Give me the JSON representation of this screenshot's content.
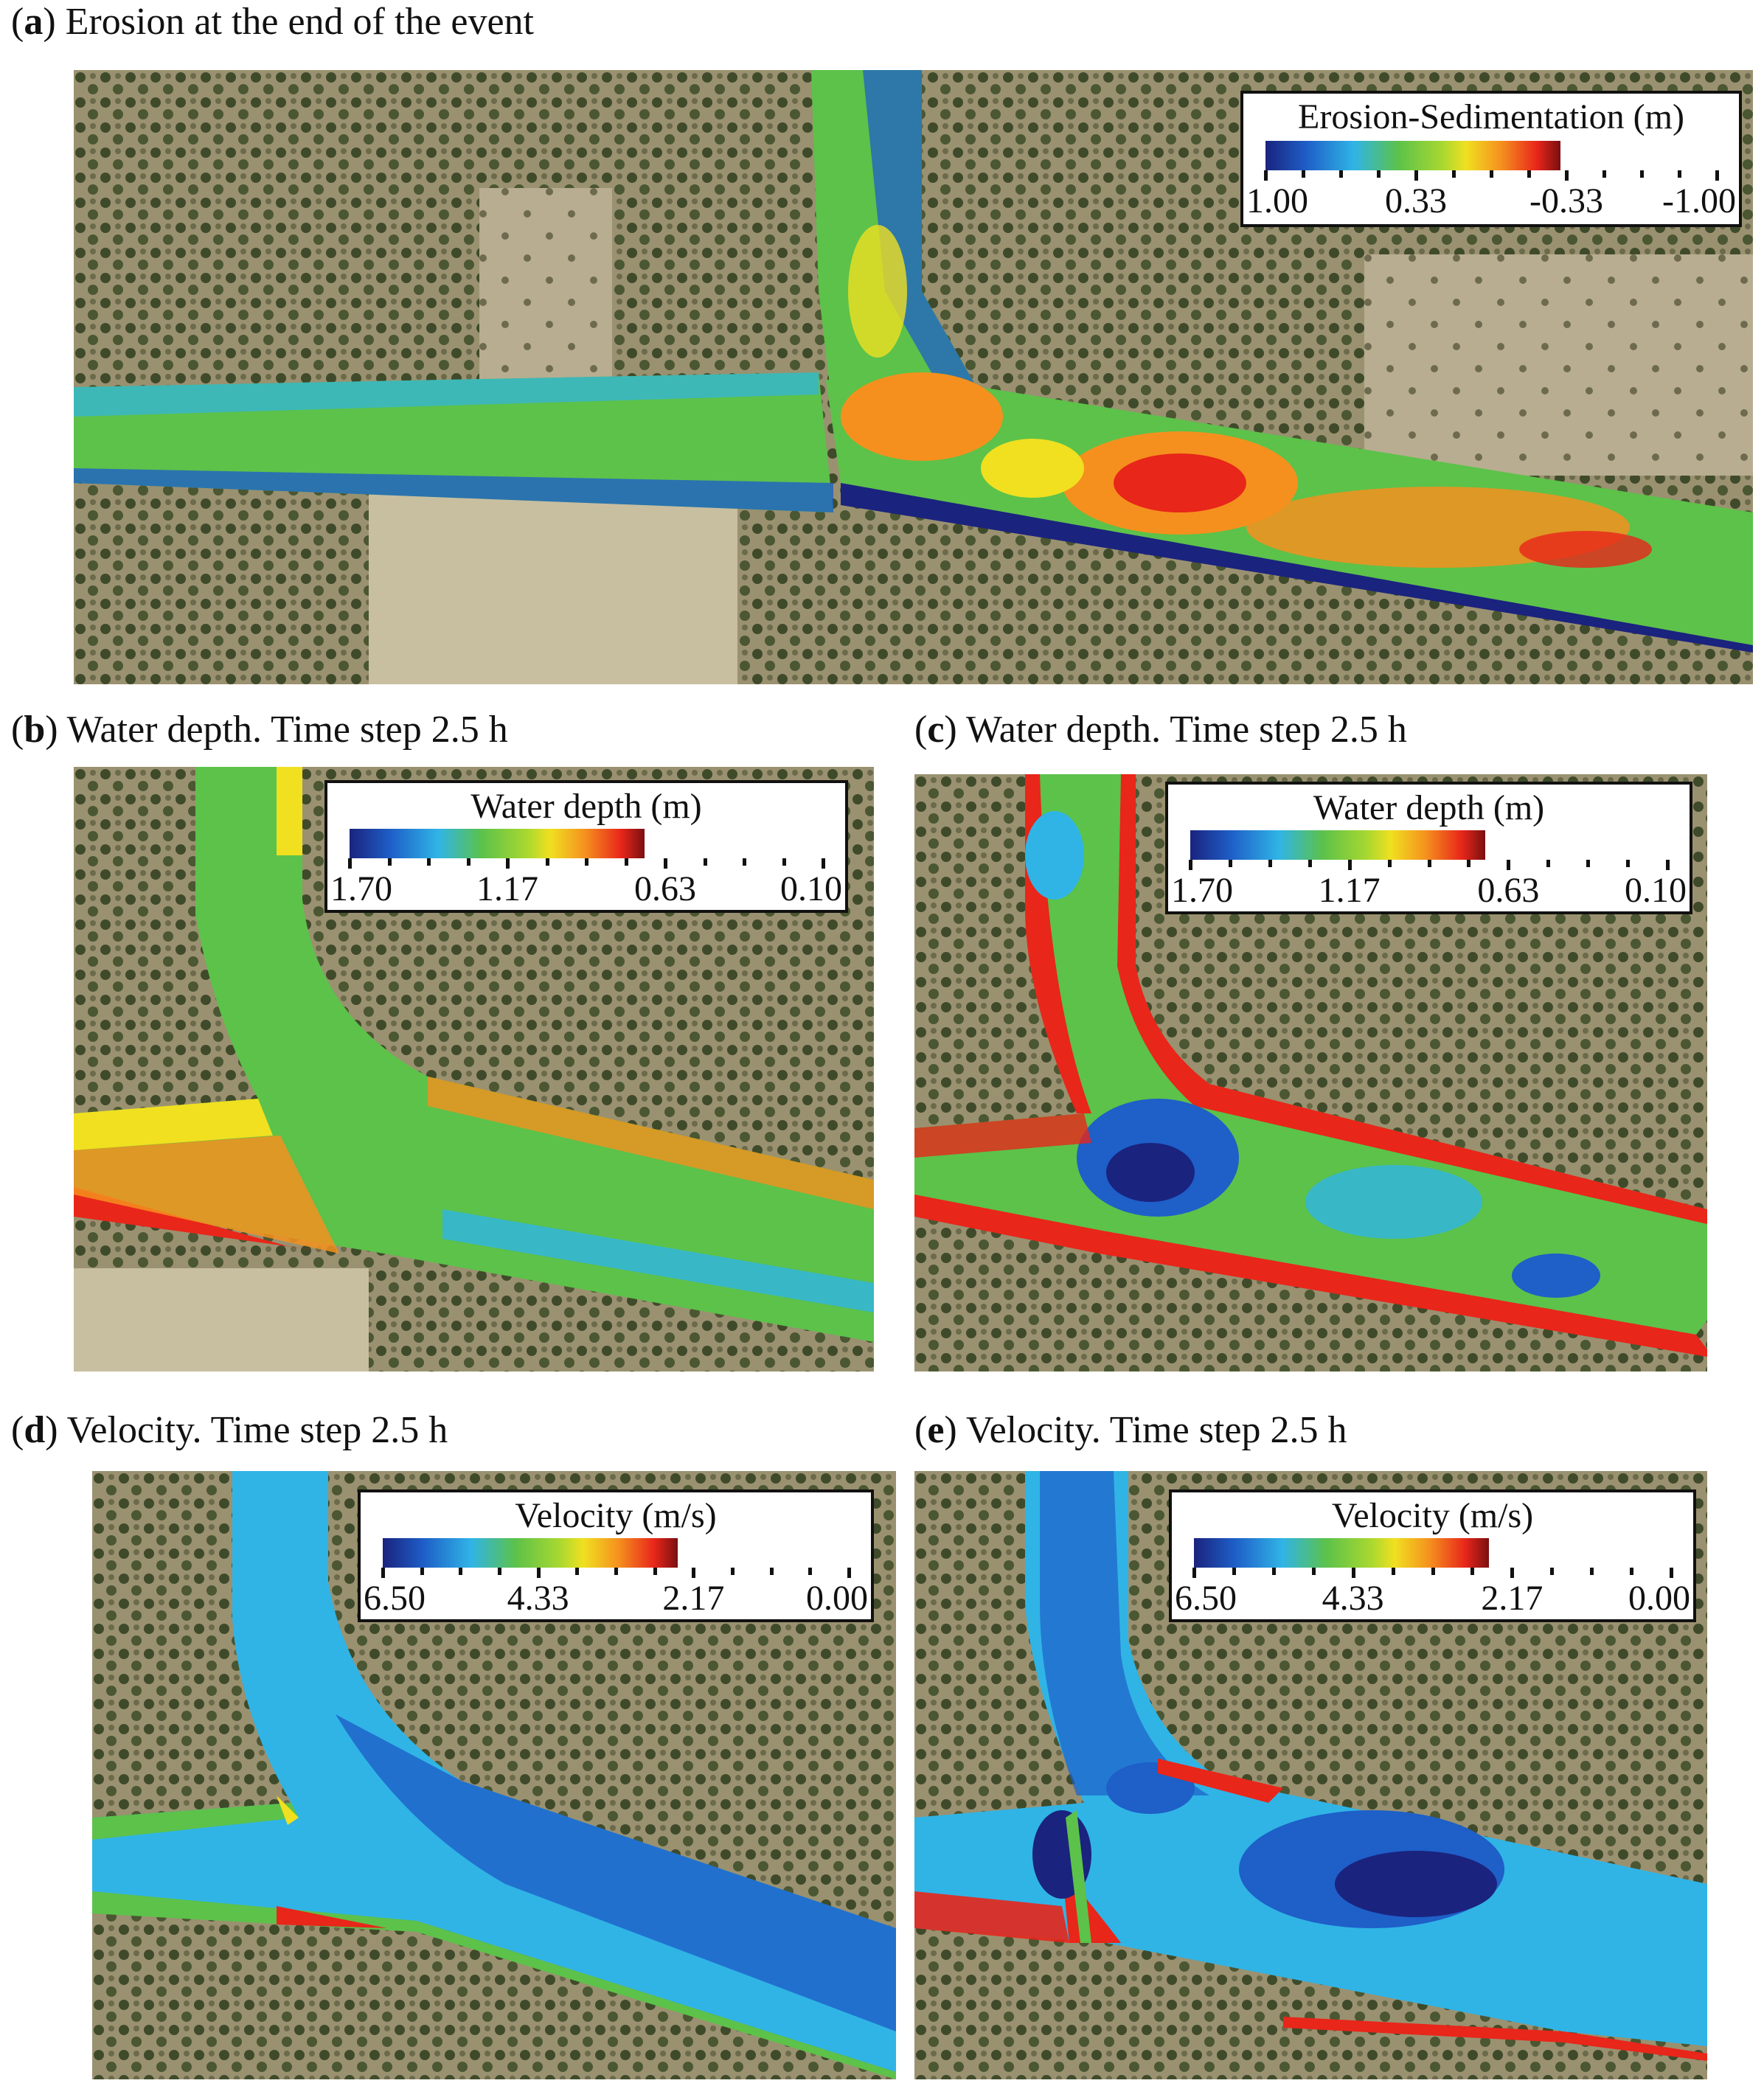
{
  "colors": {
    "dark_blue": "#1a237e",
    "blue": "#1e5fc8",
    "cyan": "#30b4e6",
    "green": "#5cc24a",
    "yellow": "#f0e020",
    "orange": "#f5901e",
    "red": "#e8261a",
    "dark_red": "#7a0f10"
  },
  "panels": [
    {
      "id": "a",
      "label": "a",
      "caption": "Erosion at the end of the event",
      "legend": {
        "title": "Erosion-Sedimentation (m)",
        "ticks": [
          "1.00",
          "0.33",
          "-0.33",
          "-1.00"
        ]
      }
    },
    {
      "id": "b",
      "label": "b",
      "caption": "Water depth. Time step 2.5 h",
      "legend": {
        "title": "Water depth (m)",
        "ticks": [
          "1.70",
          "1.17",
          "0.63",
          "0.10"
        ]
      }
    },
    {
      "id": "c",
      "label": "c",
      "caption": "Water depth. Time step 2.5 h",
      "legend": {
        "title": "Water depth (m)",
        "ticks": [
          "1.70",
          "1.17",
          "0.63",
          "0.10"
        ]
      }
    },
    {
      "id": "d",
      "label": "d",
      "caption": "Velocity. Time step 2.5 h",
      "legend": {
        "title": "Velocity (m/s)",
        "ticks": [
          "6.50",
          "4.33",
          "2.17",
          "0.00"
        ]
      }
    },
    {
      "id": "e",
      "label": "e",
      "caption": "Velocity. Time step 2.5 h",
      "legend": {
        "title": "Velocity (m/s)",
        "ticks": [
          "6.50",
          "4.33",
          "2.17",
          "0.00"
        ]
      }
    }
  ]
}
